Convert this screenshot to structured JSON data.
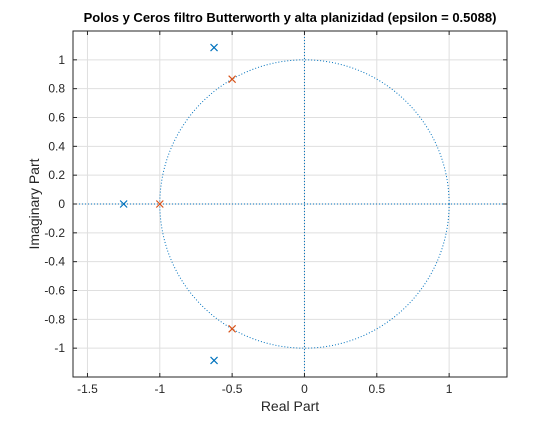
{
  "figure": {
    "title": "Polos y Ceros filtro Butterworth y alta planizidad (epsilon = 0.5088)"
  },
  "chart_data": {
    "type": "scatter",
    "title": "Polos y Ceros filtro Butterworth y alta planizidad (epsilon = 0.5088)",
    "xlabel": "Real Part",
    "ylabel": "Imaginary Part",
    "xlim": [
      -1.6,
      1.4
    ],
    "ylim": [
      -1.2,
      1.2
    ],
    "xticks": [
      -1.5,
      -1,
      -0.5,
      0,
      0.5,
      1
    ],
    "xtick_labels": [
      "-1.5",
      "-1",
      "-0.5",
      "0",
      "0.5",
      "1"
    ],
    "yticks": [
      1,
      0.8,
      0.6,
      0.4,
      0.2,
      0,
      -0.2,
      -0.4,
      -0.6,
      -0.8,
      -1
    ],
    "ytick_labels": [
      "1",
      "0.8",
      "0.6",
      "0.4",
      "0.2",
      "0",
      "-0.2",
      "-0.4",
      "-0.6",
      "-0.8",
      "-1"
    ],
    "grid": true,
    "unit_circle": true,
    "series": [
      {
        "marker": "x",
        "color": "#0072BD",
        "points": [
          [
            -0.625,
            1.085
          ],
          [
            -1.25,
            0.0
          ],
          [
            -0.625,
            -1.085
          ]
        ]
      },
      {
        "marker": "x",
        "color": "#D95319",
        "points": [
          [
            -0.5,
            0.866
          ],
          [
            -1.0,
            0.0
          ],
          [
            -0.5,
            -0.866
          ]
        ]
      }
    ]
  }
}
